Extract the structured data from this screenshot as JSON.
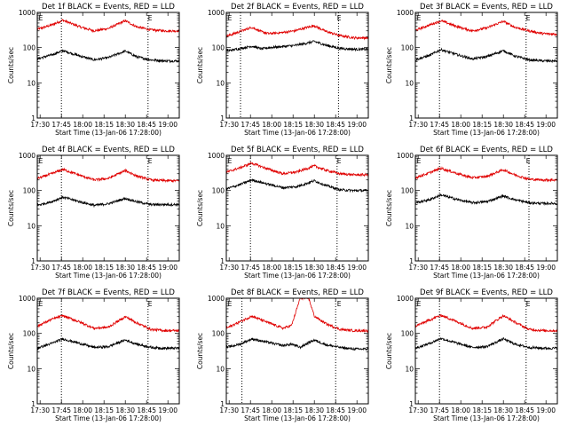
{
  "chart_data": {
    "type": "line",
    "panel_titles": [
      "Det 1f BLACK = Events, RED = LLD",
      "Det 2f BLACK = Events, RED = LLD",
      "Det 3f BLACK = Events, RED = LLD",
      "Det 4f BLACK = Events, RED = LLD",
      "Det 5f BLACK = Events, RED = LLD",
      "Det 6f BLACK = Events, RED = LLD",
      "Det 7f BLACK = Events, RED = LLD",
      "Det 8f BLACK = Events, RED = LLD",
      "Det 9f BLACK = Events, RED = LLD"
    ],
    "xlabel": "Start Time (13-Jan-06 17:28:00)",
    "ylabel": "Counts/sec",
    "x_tick_labels": [
      "17:30",
      "17:45",
      "18:00",
      "18:15",
      "18:30",
      "18:45",
      "19:00"
    ],
    "x_tick_minutes": [
      2,
      17,
      32,
      47,
      62,
      77,
      92
    ],
    "xlim_minutes": [
      0,
      100
    ],
    "y_scale": "log",
    "y_tick_labels": [
      "1",
      "10",
      "100",
      "1000"
    ],
    "ylim": [
      1,
      1000
    ],
    "markers": [
      "E",
      "E"
    ],
    "marker_minutes": [
      1,
      78
    ],
    "dotted_vlines_minutes": [
      [
        17,
        78
      ],
      [
        10,
        79
      ],
      [
        17,
        78
      ],
      [
        17,
        78
      ],
      [
        17,
        78
      ],
      [
        17,
        80
      ],
      [
        17,
        78
      ],
      [
        11,
        77
      ],
      [
        17,
        78
      ]
    ],
    "series_colors": {
      "events": "#000000",
      "lld": "#e00000"
    },
    "panels": [
      {
        "x": [
          0,
          10,
          18,
          30,
          40,
          50,
          62,
          70,
          80,
          90,
          100
        ],
        "events": [
          48,
          62,
          82,
          58,
          45,
          52,
          80,
          55,
          45,
          42,
          42
        ],
        "lld": [
          330,
          440,
          600,
          390,
          300,
          350,
          580,
          390,
          320,
          300,
          300
        ]
      },
      {
        "x": [
          0,
          10,
          18,
          25,
          30,
          40,
          48,
          55,
          62,
          70,
          80,
          90,
          100
        ],
        "events": [
          80,
          95,
          110,
          92,
          100,
          108,
          115,
          130,
          150,
          118,
          95,
          90,
          90
        ],
        "lld": [
          210,
          290,
          380,
          280,
          250,
          270,
          300,
          360,
          420,
          290,
          220,
          190,
          190
        ]
      },
      {
        "x": [
          0,
          10,
          18,
          30,
          40,
          50,
          62,
          70,
          80,
          90,
          100
        ],
        "events": [
          45,
          60,
          88,
          62,
          48,
          55,
          82,
          58,
          45,
          42,
          42
        ],
        "lld": [
          310,
          440,
          580,
          390,
          300,
          360,
          560,
          380,
          300,
          250,
          240
        ]
      },
      {
        "x": [
          0,
          10,
          18,
          30,
          40,
          50,
          62,
          70,
          80,
          90,
          100
        ],
        "events": [
          38,
          48,
          65,
          48,
          38,
          42,
          60,
          48,
          40,
          40,
          40
        ],
        "lld": [
          220,
          300,
          400,
          270,
          200,
          220,
          370,
          260,
          200,
          190,
          190
        ]
      },
      {
        "x": [
          0,
          10,
          18,
          30,
          40,
          50,
          62,
          70,
          80,
          90,
          100
        ],
        "events": [
          110,
          150,
          200,
          150,
          120,
          130,
          190,
          140,
          105,
          100,
          100
        ],
        "lld": [
          330,
          450,
          600,
          400,
          300,
          340,
          500,
          380,
          300,
          280,
          280
        ]
      },
      {
        "x": [
          0,
          10,
          18,
          30,
          40,
          50,
          62,
          70,
          80,
          90,
          100
        ],
        "events": [
          45,
          55,
          75,
          55,
          45,
          48,
          70,
          55,
          45,
          43,
          43
        ],
        "lld": [
          230,
          320,
          430,
          300,
          230,
          250,
          390,
          280,
          210,
          200,
          200
        ]
      },
      {
        "x": [
          0,
          10,
          18,
          30,
          40,
          50,
          62,
          70,
          80,
          90,
          100
        ],
        "events": [
          38,
          52,
          70,
          52,
          40,
          42,
          65,
          50,
          40,
          38,
          38
        ],
        "lld": [
          160,
          250,
          320,
          210,
          140,
          150,
          300,
          200,
          130,
          120,
          120
        ]
      },
      {
        "x": [
          0,
          10,
          18,
          30,
          40,
          46,
          52,
          58,
          62,
          70,
          80,
          90,
          100
        ],
        "events": [
          40,
          50,
          70,
          55,
          45,
          50,
          40,
          55,
          65,
          48,
          40,
          36,
          36
        ],
        "lld": [
          140,
          220,
          310,
          200,
          140,
          170,
          1000,
          1000,
          310,
          190,
          130,
          120,
          120
        ]
      },
      {
        "x": [
          0,
          10,
          18,
          30,
          40,
          50,
          62,
          70,
          80,
          90,
          100
        ],
        "events": [
          38,
          52,
          72,
          52,
          40,
          42,
          70,
          50,
          40,
          38,
          38
        ],
        "lld": [
          160,
          240,
          330,
          210,
          140,
          150,
          320,
          210,
          130,
          120,
          120
        ]
      }
    ]
  }
}
